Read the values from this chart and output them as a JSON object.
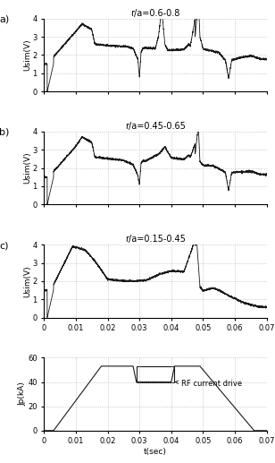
{
  "title_a": "r/a=0.6-0.8",
  "title_b": "r/a=0.45-0.65",
  "title_c": "r/a=0.15-0.45",
  "ylabel_usim": "Usim(V)",
  "ylabel_jp": "Jp(kA)",
  "xlabel": "t(sec)",
  "panel_labels": [
    "a)",
    "b)",
    "c)"
  ],
  "rf_label": "RF current drive",
  "ylim_usim": [
    0,
    4
  ],
  "ylim_jp": [
    0,
    60
  ],
  "xlim": [
    0,
    0.07
  ],
  "yticks_usim": [
    0,
    1,
    2,
    3,
    4
  ],
  "yticks_jp": [
    0,
    20,
    40,
    60
  ],
  "xticks": [
    0,
    0.01,
    0.02,
    0.03,
    0.04,
    0.05,
    0.06,
    0.07
  ],
  "line_color": "#1a1a1a",
  "grid_color": "#aaaaaa",
  "background": "#ffffff"
}
